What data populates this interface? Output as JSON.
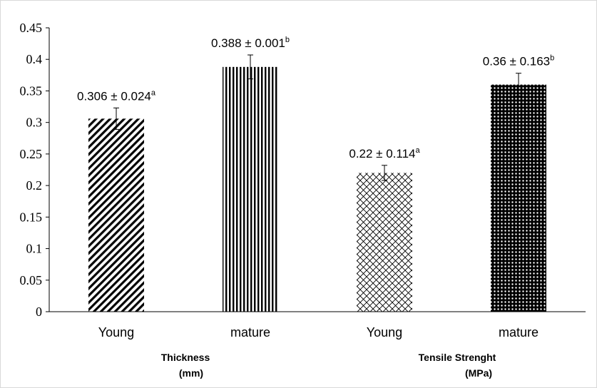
{
  "chart_data": {
    "type": "bar",
    "ylim": [
      0,
      0.45
    ],
    "ytick_step": 0.05,
    "yticks": [
      "0",
      "0.05",
      "0.1",
      "0.15",
      "0.2",
      "0.25",
      "0.3",
      "0.35",
      "0.4",
      "0.45"
    ],
    "grid": false,
    "legend": "none",
    "bars": [
      {
        "category": "Young",
        "group": "Thickness (mm)",
        "value": 0.306,
        "error": 0.017,
        "label": "0.306 ± 0.024",
        "sup": "a",
        "pattern": "diagonal"
      },
      {
        "category": "mature",
        "group": "Thickness (mm)",
        "value": 0.388,
        "error": 0.019,
        "label": "0.388 ± 0.001",
        "sup": "b",
        "pattern": "vertical"
      },
      {
        "category": "Young",
        "group": "Tensile Strenght (MPa)",
        "value": 0.22,
        "error": 0.012,
        "label": "0.22 ± 0.114",
        "sup": "a",
        "pattern": "crosshatch"
      },
      {
        "category": "mature",
        "group": "Tensile Strenght (MPa)",
        "value": 0.36,
        "error": 0.018,
        "label": "0.36 ± 0.163",
        "sup": "b",
        "pattern": "dots"
      }
    ],
    "groups": [
      {
        "line1": "Thickness",
        "line2": "(mm)"
      },
      {
        "line1": "Tensile Strenght",
        "line2": "(MPa)"
      }
    ]
  }
}
